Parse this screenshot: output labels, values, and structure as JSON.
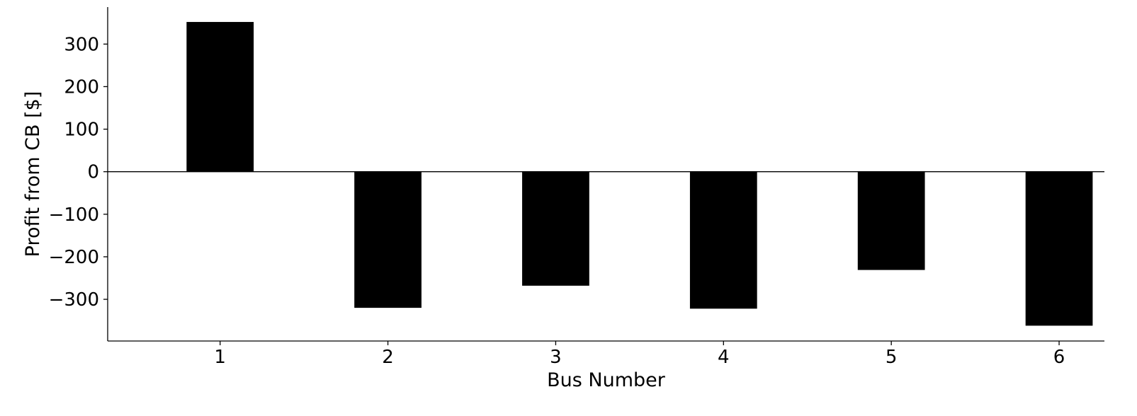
{
  "chart_data": {
    "type": "bar",
    "title": "",
    "xlabel": "Bus Number",
    "ylabel": "Profit from CB [$]",
    "categories": [
      "1",
      "2",
      "3",
      "4",
      "5",
      "6"
    ],
    "values": [
      352,
      -320,
      -268,
      -322,
      -231,
      -362
    ],
    "xlim": [
      0.33,
      6.27
    ],
    "ylim": [
      -398,
      387
    ],
    "yticks": [
      -300,
      -200,
      -100,
      0,
      100,
      200,
      300
    ],
    "ytick_labels": [
      "−300",
      "−200",
      "−100",
      "0",
      "100",
      "200",
      "300"
    ],
    "bar_width": 0.4,
    "bar_color": "#000000",
    "zero_line": true,
    "grid": false,
    "legend": "none"
  }
}
